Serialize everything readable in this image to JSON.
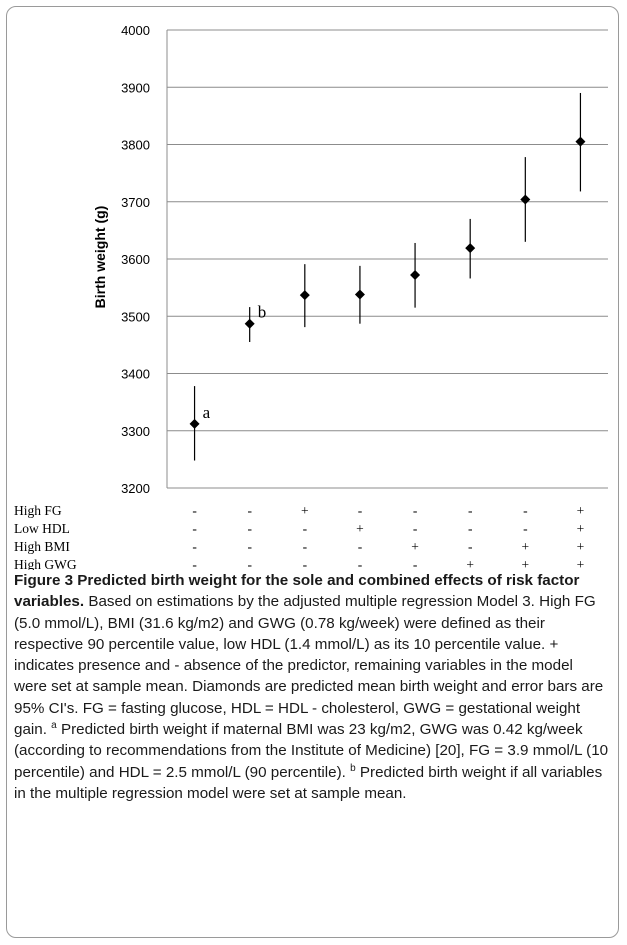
{
  "chart_data": {
    "type": "scatter",
    "title": "",
    "xlabel": "",
    "ylabel": "Birth weight (g)",
    "ylim": [
      3200,
      4000
    ],
    "yticks": [
      "3200",
      "3300",
      "3400",
      "3500",
      "3600",
      "3700",
      "3800",
      "3900",
      "4000"
    ],
    "grid": true,
    "legend": "none",
    "marker_color": "#000000",
    "points": [
      {
        "y": 3312,
        "lower": 3248,
        "upper": 3378,
        "annotation": "a"
      },
      {
        "y": 3487,
        "lower": 3455,
        "upper": 3516,
        "annotation": "b"
      },
      {
        "y": 3537,
        "lower": 3481,
        "upper": 3591,
        "annotation": ""
      },
      {
        "y": 3538,
        "lower": 3487,
        "upper": 3588,
        "annotation": ""
      },
      {
        "y": 3572,
        "lower": 3515,
        "upper": 3628,
        "annotation": ""
      },
      {
        "y": 3619,
        "lower": 3566,
        "upper": 3670,
        "annotation": ""
      },
      {
        "y": 3704,
        "lower": 3630,
        "upper": 3778,
        "annotation": ""
      },
      {
        "y": 3805,
        "lower": 3718,
        "upper": 3890,
        "annotation": ""
      }
    ],
    "predictor_rows": [
      {
        "label": "High FG",
        "values": [
          "-",
          "-",
          "+",
          "-",
          "-",
          "-",
          "-",
          "+"
        ]
      },
      {
        "label": "Low HDL",
        "values": [
          "-",
          "-",
          "-",
          "+",
          "-",
          "-",
          "-",
          "+"
        ]
      },
      {
        "label": "High BMI",
        "values": [
          "-",
          "-",
          "-",
          "-",
          "+",
          "-",
          "+",
          "+"
        ]
      },
      {
        "label": "High GWG",
        "values": [
          "-",
          "-",
          "-",
          "-",
          "-",
          "+",
          "+",
          "+"
        ]
      }
    ]
  },
  "caption": {
    "title": "Figure 3 Predicted birth weight for the sole and combined effects of risk factor variables.",
    "body": " Based on estimations by the adjusted multiple regression Model 3. High FG (5.0 mmol/L), BMI (31.6 kg/m2) and GWG (0.78 kg/week) were defined as their respective 90 percentile value, low HDL (1.4 mmol/L) as its 10 percentile value. + indicates presence and - absence of the predictor, remaining variables in the model were set at sample mean. Diamonds are predicted mean birth weight and error bars are 95% CI's. FG = fasting glucose, HDL = HDL - cholesterol, GWG = gestational weight gain. ",
    "note_a_marker": "a",
    "note_a": " Predicted birth weight if maternal BMI was 23 kg/m2, GWG was 0.42 kg/week (according to recommendations from the Institute of Medicine) [20], FG = 3.9 mmol/L (10 percentile) and HDL = 2.5 mmol/L (90 percentile). ",
    "note_b_marker": "b",
    "note_b": " Predicted birth weight if all variables in the multiple regression model were set at sample mean."
  }
}
